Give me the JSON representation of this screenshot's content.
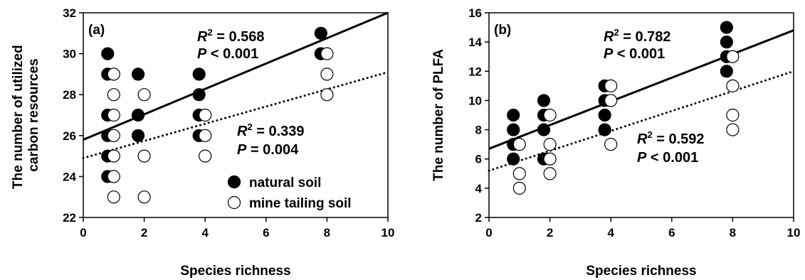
{
  "chart_data": [
    {
      "type": "scatter",
      "panel_label": "(a)",
      "xlabel": "Species richness",
      "ylabel_lines": [
        "The number of utilized",
        "carbon resources"
      ],
      "xlim": [
        0,
        10
      ],
      "ylim": [
        22,
        32
      ],
      "xticks": [
        0,
        2,
        4,
        6,
        8,
        10
      ],
      "yticks": [
        22,
        24,
        26,
        28,
        30,
        32
      ],
      "grid": false,
      "legend_position": "bottom-right",
      "series": [
        {
          "name": "natural soil",
          "marker": "filled-circle",
          "color": "#000000",
          "points": [
            [
              0.8,
              30
            ],
            [
              0.8,
              29
            ],
            [
              0.8,
              27
            ],
            [
              0.8,
              26
            ],
            [
              0.8,
              25
            ],
            [
              0.8,
              24
            ],
            [
              1.8,
              29
            ],
            [
              1.8,
              27
            ],
            [
              1.8,
              26
            ],
            [
              3.8,
              29
            ],
            [
              3.8,
              28
            ],
            [
              3.8,
              27
            ],
            [
              3.8,
              26
            ],
            [
              7.8,
              31
            ],
            [
              7.8,
              30
            ]
          ],
          "fit": {
            "intercept": 25.8,
            "slope": 0.62,
            "line_style": "solid"
          }
        },
        {
          "name": "mine tailing soil",
          "marker": "open-circle",
          "color": "#000000",
          "points": [
            [
              1,
              29
            ],
            [
              1,
              28
            ],
            [
              1,
              27
            ],
            [
              1,
              26
            ],
            [
              1,
              25
            ],
            [
              1,
              24
            ],
            [
              1,
              23
            ],
            [
              2,
              28
            ],
            [
              2,
              25
            ],
            [
              2,
              23
            ],
            [
              4,
              27
            ],
            [
              4,
              26
            ],
            [
              4,
              25
            ],
            [
              8,
              30
            ],
            [
              8,
              29
            ],
            [
              8,
              28
            ]
          ],
          "fit": {
            "intercept": 24.9,
            "slope": 0.42,
            "line_style": "dotted"
          }
        }
      ],
      "annotations": [
        {
          "r2": "0.568",
          "p": "< 0.001"
        },
        {
          "r2": "0.339",
          "p": "= 0.004"
        }
      ]
    },
    {
      "type": "scatter",
      "panel_label": "(b)",
      "xlabel": "Species richness",
      "ylabel_lines": [
        "The number of PLFA"
      ],
      "xlim": [
        0,
        10
      ],
      "ylim": [
        2,
        16
      ],
      "xticks": [
        0,
        2,
        4,
        6,
        8,
        10
      ],
      "yticks": [
        2,
        4,
        6,
        8,
        10,
        12,
        14,
        16
      ],
      "grid": false,
      "series": [
        {
          "name": "natural soil",
          "marker": "filled-circle",
          "color": "#000000",
          "points": [
            [
              0.8,
              9
            ],
            [
              0.8,
              8
            ],
            [
              0.8,
              7
            ],
            [
              0.8,
              6
            ],
            [
              1.8,
              10
            ],
            [
              1.8,
              9
            ],
            [
              1.8,
              8
            ],
            [
              1.8,
              6
            ],
            [
              3.8,
              11
            ],
            [
              3.8,
              10
            ],
            [
              3.8,
              9
            ],
            [
              3.8,
              8
            ],
            [
              7.8,
              15
            ],
            [
              7.8,
              14
            ],
            [
              7.8,
              13
            ],
            [
              7.8,
              12
            ]
          ],
          "fit": {
            "intercept": 6.7,
            "slope": 0.81,
            "line_style": "solid"
          }
        },
        {
          "name": "mine tailing soil",
          "marker": "open-circle",
          "color": "#000000",
          "points": [
            [
              1,
              7
            ],
            [
              1,
              5
            ],
            [
              1,
              4
            ],
            [
              2,
              9
            ],
            [
              2,
              7
            ],
            [
              2,
              6
            ],
            [
              2,
              5
            ],
            [
              4,
              11
            ],
            [
              4,
              10
            ],
            [
              4,
              7
            ],
            [
              8,
              13
            ],
            [
              8,
              11
            ],
            [
              8,
              9
            ],
            [
              8,
              8
            ]
          ],
          "fit": {
            "intercept": 5.2,
            "slope": 0.68,
            "line_style": "dotted"
          }
        }
      ],
      "annotations": [
        {
          "r2": "0.782",
          "p": "< 0.001"
        },
        {
          "r2": "0.592",
          "p": "< 0.001"
        }
      ]
    }
  ],
  "stat_labels": {
    "r": "R",
    "sup": "2",
    "eq": " = ",
    "p": "P",
    "space": " "
  },
  "legend": {
    "items": [
      {
        "label": "natural soil",
        "marker": "filled-circle"
      },
      {
        "label": "mine tailing soil",
        "marker": "open-circle"
      }
    ]
  }
}
